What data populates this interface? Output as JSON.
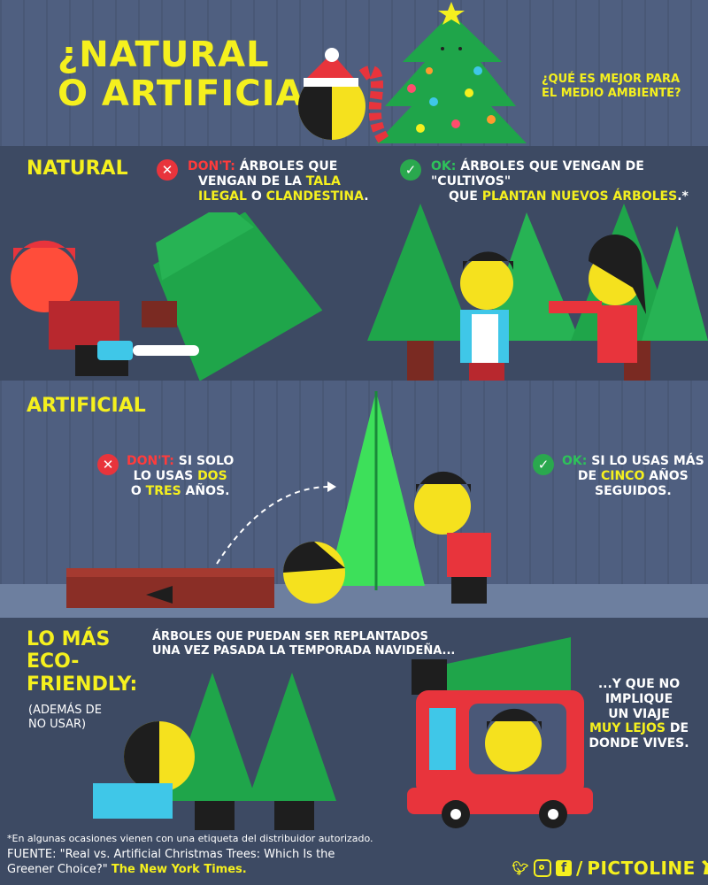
{
  "header": {
    "title_line1": "¿NATURAL",
    "title_line2": "O ARTIFICIAL?",
    "question_line1": "¿QUÉ ES MEJOR PARA",
    "question_line2": "EL MEDIO AMBIENTE?"
  },
  "natural": {
    "heading": "NATURAL",
    "dont_label": "DON'T:",
    "dont_line1": "ÁRBOLES QUE",
    "dont_line2_a": "VENGAN DE LA ",
    "dont_line2_b": "TALA",
    "dont_line3_a": "ILEGAL",
    "dont_line3_b": " O ",
    "dont_line3_c": "CLANDESTINA",
    "dont_line3_d": ".",
    "ok_label": "OK:",
    "ok_line1": "ÁRBOLES QUE VENGAN DE \"CULTIVOS\"",
    "ok_line2_a": "QUE ",
    "ok_line2_b": "PLANTAN NUEVOS ÁRBOLES",
    "ok_line2_c": ".*"
  },
  "artificial": {
    "heading": "ARTIFICIAL",
    "dont_label": "DON'T:",
    "dont_line1": "SI SOLO",
    "dont_line2_a": "LO USAS ",
    "dont_line2_b": "DOS",
    "dont_line3_a": "O ",
    "dont_line3_b": "TRES",
    "dont_line3_c": " AÑOS.",
    "ok_label": "OK:",
    "ok_line1": "SI LO USAS MÁS",
    "ok_line2_a": "DE ",
    "ok_line2_b": "CINCO",
    "ok_line2_c": " AÑOS",
    "ok_line3": "SEGUIDOS."
  },
  "eco": {
    "heading_line1": "LO MÁS",
    "heading_line2": "ECO-",
    "heading_line3": "FRIENDLY:",
    "note_line1": "(ADEMÁS DE",
    "note_line2": "NO USAR)",
    "replant_line1": "ÁRBOLES QUE PUEDAN SER REPLANTADOS",
    "replant_line2": "UNA VEZ PASADA LA TEMPORADA NAVIDEÑA...",
    "trip_line1": "...Y QUE NO",
    "trip_line2": "IMPLIQUE",
    "trip_line3": "UN VIAJE",
    "trip_line4_a": "MUY LEJOS",
    "trip_line4_b": " DE",
    "trip_line5": "DONDE VIVES."
  },
  "footer": {
    "footnote": "*En algunas ocasiones vienen con una etiqueta del distribuidor autorizado.",
    "source_line1": "FUENTE: \"Real vs. Artificial Christmas Trees: Which Is the",
    "source_line2_a": "Greener Choice?\" ",
    "source_line2_b": "The New York Times.",
    "brand": "PICTOLINE",
    "separator": "/"
  },
  "icons": [
    "twitter-icon",
    "instagram-icon",
    "facebook-icon",
    "bull-logo-icon",
    "x-icon",
    "check-icon"
  ],
  "colors": {
    "accent": "#f5f01e",
    "bad": "#e8343c",
    "ok": "#2aa84e",
    "tree": "#1fa54a"
  }
}
